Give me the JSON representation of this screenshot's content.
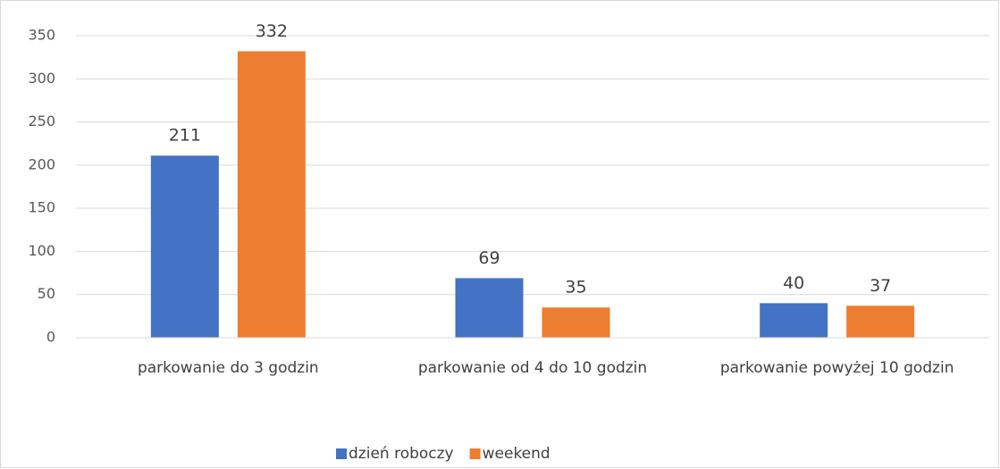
{
  "chart_data": {
    "type": "bar",
    "categories": [
      "parkowanie do 3 godzin",
      "parkowanie od 4 do 10 godzin",
      "parkowanie powyżej 10 godzin"
    ],
    "series": [
      {
        "name": "dzień roboczy",
        "color": "#4472c4",
        "values": [
          211,
          69,
          40
        ]
      },
      {
        "name": "weekend",
        "color": "#ed7d31",
        "values": [
          332,
          35,
          37
        ]
      }
    ],
    "ylim": [
      0,
      350
    ],
    "yticks": [
      0,
      50,
      100,
      150,
      200,
      250,
      300,
      350
    ],
    "grid": true,
    "legend": "bottom"
  }
}
